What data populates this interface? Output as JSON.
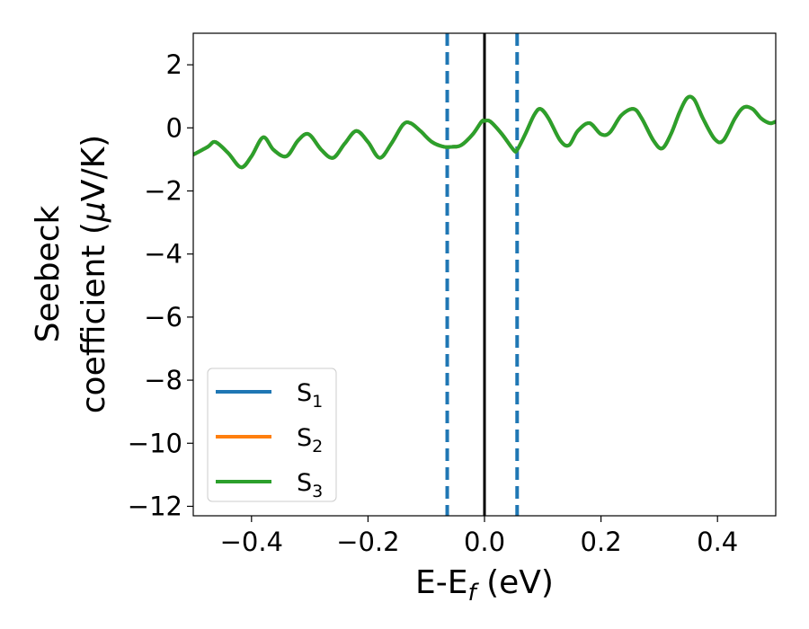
{
  "chart_data": {
    "type": "line",
    "xlabel": {
      "base": "E-E",
      "sub": "f",
      "tail": " (eV)"
    },
    "ylabel": {
      "line1": "Seebeck",
      "line2": "coefficient  (",
      "mu": "μ",
      "line2_tail": "V/K)"
    },
    "xlim": [
      -0.5,
      0.5
    ],
    "ylim": [
      -12.3,
      3.0
    ],
    "xticks": [
      -0.4,
      -0.2,
      0.0,
      0.2,
      0.4
    ],
    "xtick_labels": [
      "−0.4",
      "−0.2",
      "0.0",
      "0.2",
      "0.4"
    ],
    "yticks": [
      2,
      0,
      -2,
      -4,
      -6,
      -8,
      -10,
      -12
    ],
    "ytick_labels": [
      "2",
      "0",
      "−2",
      "−4",
      "−6",
      "−8",
      "−10",
      "−12"
    ],
    "grid": false,
    "legend_position": "lower-left",
    "colors": {
      "S1": "#1f77b4",
      "S2": "#ff7f0e",
      "S3": "#2ca02c",
      "fermi": "#000000",
      "dashed": "#1f77b4"
    },
    "series": [
      {
        "key": "s1",
        "name": "S",
        "sub": "1",
        "color": "#1f77b4",
        "x": [
          -0.5,
          -0.475,
          -0.462,
          -0.44,
          -0.418,
          -0.4,
          -0.38,
          -0.362,
          -0.34,
          -0.32,
          -0.302,
          -0.28,
          -0.26,
          -0.24,
          -0.22,
          -0.2,
          -0.18,
          -0.16,
          -0.14,
          -0.127,
          -0.11,
          -0.09,
          -0.07,
          -0.055,
          -0.04,
          -0.02,
          -0.005,
          0.0,
          0.01,
          0.03,
          0.05,
          0.056,
          0.07,
          0.085,
          0.096,
          0.11,
          0.13,
          0.145,
          0.16,
          0.18,
          0.2,
          0.215,
          0.235,
          0.256,
          0.27,
          0.29,
          0.305,
          0.32,
          0.335,
          0.348,
          0.36,
          0.375,
          0.395,
          0.41,
          0.43,
          0.445,
          0.46,
          0.475,
          0.49,
          0.5
        ],
        "y": [
          -0.85,
          -0.6,
          -0.45,
          -0.8,
          -1.25,
          -0.9,
          -0.3,
          -0.7,
          -0.9,
          -0.4,
          -0.2,
          -0.7,
          -0.95,
          -0.5,
          -0.1,
          -0.45,
          -0.95,
          -0.5,
          0.1,
          0.15,
          -0.1,
          -0.45,
          -0.6,
          -0.6,
          -0.55,
          -0.2,
          0.2,
          0.22,
          0.2,
          -0.2,
          -0.7,
          -0.7,
          -0.2,
          0.4,
          0.6,
          0.3,
          -0.4,
          -0.55,
          -0.1,
          0.15,
          -0.2,
          -0.15,
          0.4,
          0.6,
          0.3,
          -0.4,
          -0.65,
          -0.2,
          0.5,
          0.95,
          0.9,
          0.3,
          -0.35,
          -0.4,
          0.3,
          0.65,
          0.6,
          0.3,
          0.15,
          0.2
        ]
      },
      {
        "key": "s2",
        "name": "S",
        "sub": "2",
        "color": "#ff7f0e",
        "x": [
          -0.5,
          -0.475,
          -0.462,
          -0.44,
          -0.418,
          -0.4,
          -0.38,
          -0.362,
          -0.34,
          -0.32,
          -0.302,
          -0.28,
          -0.26,
          -0.24,
          -0.22,
          -0.2,
          -0.18,
          -0.16,
          -0.14,
          -0.127,
          -0.11,
          -0.09,
          -0.07,
          -0.055,
          -0.04,
          -0.02,
          -0.005,
          0.0,
          0.01,
          0.03,
          0.05,
          0.056,
          0.07,
          0.085,
          0.096,
          0.11,
          0.13,
          0.145,
          0.16,
          0.18,
          0.2,
          0.215,
          0.235,
          0.256,
          0.27,
          0.29,
          0.305,
          0.32,
          0.335,
          0.348,
          0.36,
          0.375,
          0.395,
          0.41,
          0.43,
          0.445,
          0.46,
          0.475,
          0.49,
          0.5
        ],
        "y": [
          -0.85,
          -0.6,
          -0.45,
          -0.8,
          -1.25,
          -0.9,
          -0.3,
          -0.7,
          -0.9,
          -0.4,
          -0.2,
          -0.7,
          -0.95,
          -0.5,
          -0.1,
          -0.45,
          -0.95,
          -0.5,
          0.1,
          0.15,
          -0.1,
          -0.45,
          -0.6,
          -0.6,
          -0.55,
          -0.2,
          0.2,
          0.22,
          0.2,
          -0.2,
          -0.7,
          -0.7,
          -0.2,
          0.4,
          0.6,
          0.3,
          -0.4,
          -0.55,
          -0.1,
          0.15,
          -0.2,
          -0.15,
          0.4,
          0.6,
          0.3,
          -0.4,
          -0.65,
          -0.2,
          0.5,
          0.95,
          0.9,
          0.3,
          -0.35,
          -0.4,
          0.3,
          0.65,
          0.6,
          0.3,
          0.15,
          0.2
        ]
      },
      {
        "key": "s3",
        "name": "S",
        "sub": "3",
        "color": "#2ca02c",
        "x": [
          -0.5,
          -0.475,
          -0.462,
          -0.44,
          -0.418,
          -0.4,
          -0.38,
          -0.362,
          -0.34,
          -0.32,
          -0.302,
          -0.28,
          -0.26,
          -0.24,
          -0.22,
          -0.2,
          -0.18,
          -0.16,
          -0.14,
          -0.127,
          -0.11,
          -0.09,
          -0.07,
          -0.055,
          -0.04,
          -0.02,
          -0.005,
          0.0,
          0.01,
          0.03,
          0.05,
          0.056,
          0.07,
          0.085,
          0.096,
          0.11,
          0.13,
          0.145,
          0.16,
          0.18,
          0.2,
          0.215,
          0.235,
          0.256,
          0.27,
          0.29,
          0.305,
          0.32,
          0.335,
          0.348,
          0.36,
          0.375,
          0.395,
          0.41,
          0.43,
          0.445,
          0.46,
          0.475,
          0.49,
          0.5
        ],
        "y": [
          -0.85,
          -0.6,
          -0.45,
          -0.8,
          -1.25,
          -0.9,
          -0.3,
          -0.7,
          -0.9,
          -0.4,
          -0.2,
          -0.7,
          -0.95,
          -0.5,
          -0.1,
          -0.45,
          -0.95,
          -0.5,
          0.1,
          0.15,
          -0.1,
          -0.45,
          -0.6,
          -0.6,
          -0.55,
          -0.2,
          0.2,
          0.22,
          0.2,
          -0.2,
          -0.7,
          -0.7,
          -0.2,
          0.4,
          0.6,
          0.3,
          -0.4,
          -0.55,
          -0.1,
          0.15,
          -0.2,
          -0.15,
          0.4,
          0.6,
          0.3,
          -0.4,
          -0.65,
          -0.2,
          0.5,
          0.95,
          0.9,
          0.3,
          -0.35,
          -0.4,
          0.3,
          0.65,
          0.6,
          0.3,
          0.15,
          0.2
        ]
      }
    ],
    "vertical_lines": [
      {
        "x": 0.0,
        "style": "solid",
        "color": "#000000"
      },
      {
        "x": -0.064,
        "style": "dashed",
        "color": "#1f77b4"
      },
      {
        "x": 0.056,
        "style": "dashed",
        "color": "#1f77b4"
      }
    ]
  }
}
